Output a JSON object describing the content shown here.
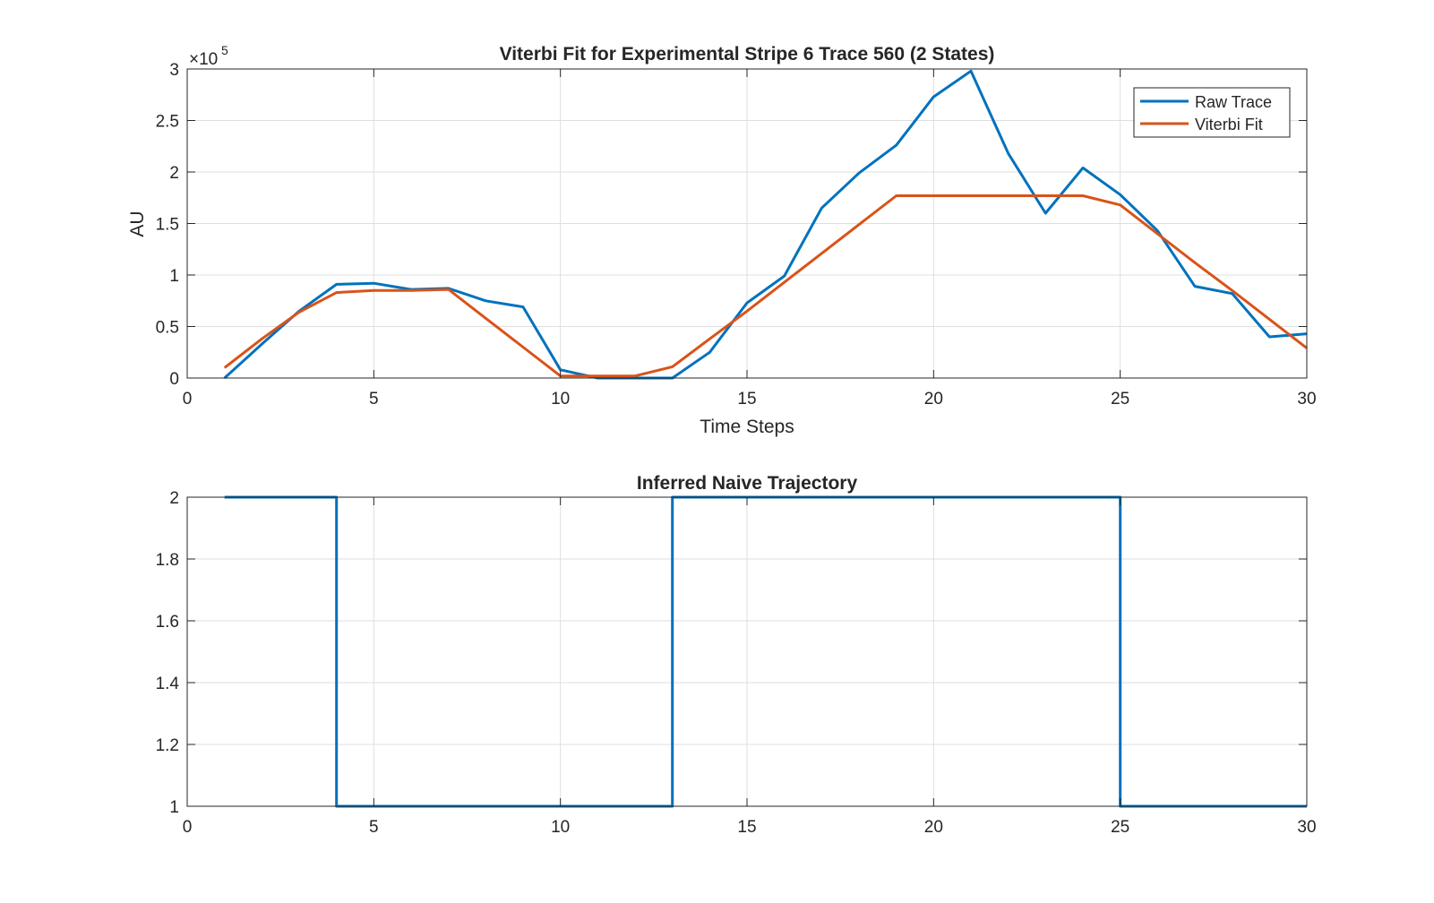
{
  "chart_data": [
    {
      "type": "line",
      "title": "Viterbi Fit for Experimental Stripe 6 Trace 560 (2 States)",
      "xlabel": "Time Steps",
      "ylabel": "AU",
      "exponent_label": "×10",
      "exponent_power": "5",
      "xlim": [
        0,
        30
      ],
      "ylim": [
        0,
        3
      ],
      "xticks": [
        "0",
        "5",
        "10",
        "15",
        "20",
        "25",
        "30"
      ],
      "yticks": [
        "0",
        "0.5",
        "1",
        "1.5",
        "2",
        "2.5",
        "3"
      ],
      "grid": true,
      "legend_position": "top-right",
      "x": [
        1,
        2,
        3,
        4,
        5,
        6,
        7,
        8,
        9,
        10,
        11,
        12,
        13,
        14,
        15,
        16,
        17,
        18,
        19,
        20,
        21,
        22,
        23,
        24,
        25,
        26,
        27,
        28,
        29,
        30
      ],
      "series": [
        {
          "name": "Raw Trace",
          "color": "#0072BD",
          "values": [
            0,
            0.33,
            0.65,
            0.91,
            0.92,
            0.86,
            0.87,
            0.75,
            0.69,
            0.08,
            0.0,
            0.0,
            0.0,
            0.25,
            0.73,
            0.99,
            1.65,
            1.99,
            2.26,
            2.73,
            2.98,
            2.18,
            1.6,
            2.04,
            1.78,
            1.43,
            0.89,
            0.82,
            0.4,
            0.43
          ]
        },
        {
          "name": "Viterbi Fit",
          "color": "#D95319",
          "values": [
            0.1,
            0.38,
            0.64,
            0.83,
            0.85,
            0.85,
            0.86,
            0.58,
            0.3,
            0.02,
            0.02,
            0.02,
            0.11,
            0.38,
            0.65,
            0.93,
            1.21,
            1.49,
            1.77,
            1.77,
            1.77,
            1.77,
            1.77,
            1.77,
            1.68,
            1.4,
            1.12,
            0.85,
            0.57,
            0.29
          ]
        }
      ]
    },
    {
      "type": "line",
      "title": "Inferred Naive Trajectory",
      "xlim": [
        0,
        30
      ],
      "ylim": [
        1,
        2
      ],
      "xticks": [
        "0",
        "5",
        "10",
        "15",
        "20",
        "25",
        "30"
      ],
      "yticks": [
        "1",
        "1.2",
        "1.4",
        "1.6",
        "1.8",
        "2"
      ],
      "grid": true,
      "series": [
        {
          "color": "#0072BD",
          "step": true,
          "x": [
            1,
            4,
            4,
            13,
            13,
            25,
            25,
            30
          ],
          "values": [
            2,
            2,
            1,
            1,
            2,
            2,
            1,
            1
          ]
        }
      ]
    }
  ]
}
